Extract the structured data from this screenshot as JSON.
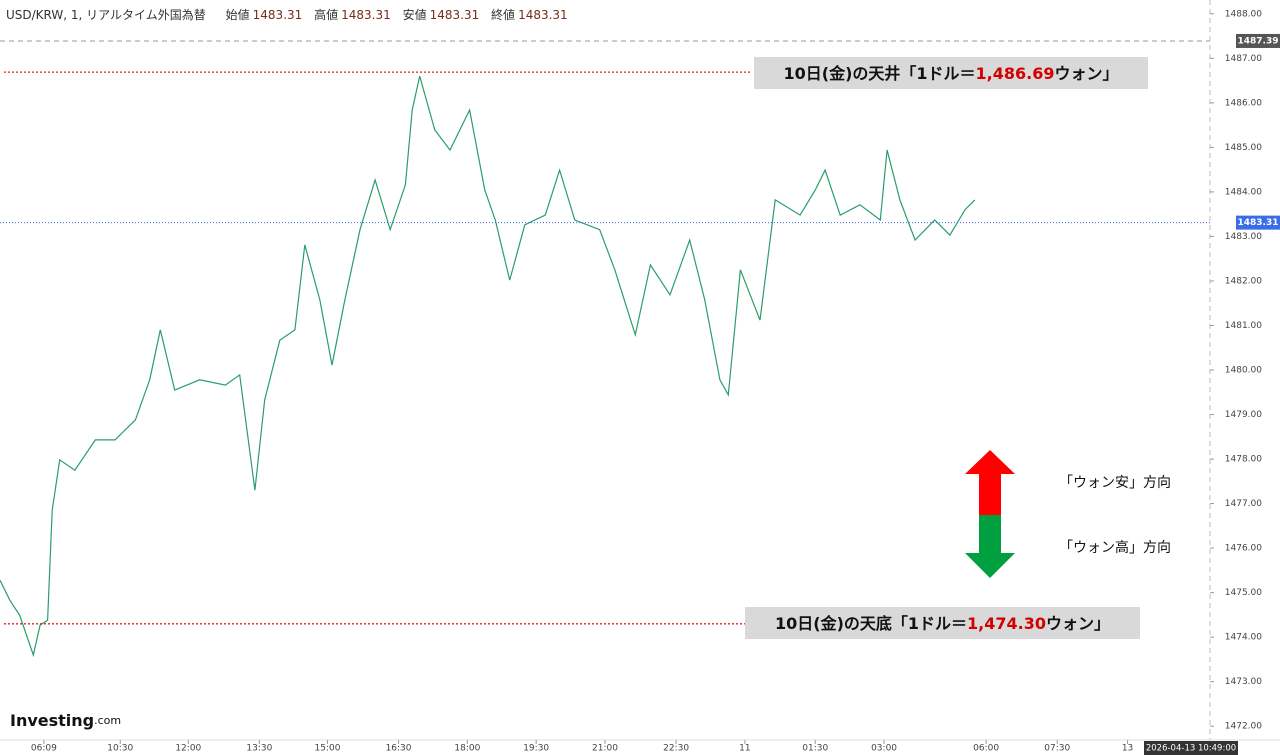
{
  "header": {
    "symbol": "USD/KRW, 1, リアルタイム外国為替",
    "open_label": "始値",
    "open": 1483.31,
    "high_label": "高値",
    "high": 1483.31,
    "low_label": "安値",
    "low": 1483.31,
    "close_label": "終値",
    "close": 1483.31
  },
  "arrows": {
    "up_label": "「ウォン安」方向",
    "down_label": "「ウォン高」方向"
  },
  "logo": {
    "name": "Investing",
    "suffix": ".com"
  },
  "chart_data": {
    "type": "line",
    "xlim": [
      0,
      1600
    ],
    "ylim": [
      1471.69,
      1488.31
    ],
    "xticks": [
      {
        "value": 58,
        "label": "06:09"
      },
      {
        "value": 159,
        "label": "10:30"
      },
      {
        "value": 249,
        "label": "12:00"
      },
      {
        "value": 343,
        "label": "13:30"
      },
      {
        "value": 433,
        "label": "15:00"
      },
      {
        "value": 527,
        "label": "16:30"
      },
      {
        "value": 618,
        "label": "18:00"
      },
      {
        "value": 709,
        "label": "19:30"
      },
      {
        "value": 800,
        "label": "21:00"
      },
      {
        "value": 894,
        "label": "22:30"
      },
      {
        "value": 985,
        "label": "11"
      },
      {
        "value": 1078,
        "label": "01:30"
      },
      {
        "value": 1169,
        "label": "03:00"
      },
      {
        "value": 1304,
        "label": "06:00"
      },
      {
        "value": 1398,
        "label": "07:30"
      },
      {
        "value": 1491,
        "label": "13"
      }
    ],
    "yticks": [
      {
        "value": 1472,
        "label": "1472.00"
      },
      {
        "value": 1473,
        "label": "1473.00"
      },
      {
        "value": 1474,
        "label": "1474.00"
      },
      {
        "value": 1475,
        "label": "1475.00"
      },
      {
        "value": 1476,
        "label": "1476.00"
      },
      {
        "value": 1477,
        "label": "1477.00"
      },
      {
        "value": 1478,
        "label": "1478.00"
      },
      {
        "value": 1479,
        "label": "1479.00"
      },
      {
        "value": 1480,
        "label": "1480.00"
      },
      {
        "value": 1481,
        "label": "1481.00"
      },
      {
        "value": 1482,
        "label": "1482.00"
      },
      {
        "value": 1483,
        "label": "1483.00"
      },
      {
        "value": 1484,
        "label": "1484.00"
      },
      {
        "value": 1485,
        "label": "1485.00"
      },
      {
        "value": 1486,
        "label": "1486.00"
      },
      {
        "value": 1487,
        "label": "1487.00"
      },
      {
        "value": 1488,
        "label": "1488.00"
      }
    ],
    "grid": false,
    "series": [
      {
        "color": "#2a9d6a",
        "x": [
          0,
          13,
          26,
          44,
          53,
          63,
          69,
          79,
          99,
          126,
          152,
          179,
          198,
          212,
          231,
          264,
          298,
          317,
          337,
          350,
          370,
          390,
          403,
          423,
          439,
          456,
          476,
          496,
          516,
          536,
          545,
          555,
          575,
          595,
          621,
          641,
          655,
          674,
          694,
          721,
          740,
          760,
          793,
          813,
          840,
          860,
          886,
          912,
          932,
          952,
          963,
          979,
          1005,
          1025,
          1058,
          1078,
          1091,
          1111,
          1137,
          1164,
          1173,
          1190,
          1210,
          1236,
          1256,
          1276,
          1289
        ],
        "values": [
          1475.28,
          1474.83,
          1474.49,
          1473.6,
          1474.27,
          1474.38,
          1476.85,
          1477.98,
          1477.75,
          1478.43,
          1478.43,
          1478.88,
          1479.78,
          1480.9,
          1479.55,
          1479.78,
          1479.66,
          1479.89,
          1477.3,
          1479.33,
          1480.67,
          1480.9,
          1482.81,
          1481.57,
          1480.11,
          1481.57,
          1483.15,
          1484.27,
          1483.15,
          1484.16,
          1485.84,
          1486.6,
          1485.39,
          1484.94,
          1485.84,
          1484.04,
          1483.37,
          1482.02,
          1483.26,
          1483.48,
          1484.49,
          1483.37,
          1483.15,
          1482.25,
          1480.79,
          1482.36,
          1481.69,
          1482.92,
          1481.57,
          1479.78,
          1479.44,
          1482.25,
          1481.12,
          1483.82,
          1483.48,
          1484.04,
          1484.49,
          1483.48,
          1483.71,
          1483.37,
          1484.94,
          1483.82,
          1482.92,
          1483.37,
          1483.03,
          1483.6,
          1483.82
        ]
      }
    ],
    "ref_price": 1487.39,
    "last_price": 1483.31,
    "cursor_time": "2026-04-13 10:49:00",
    "annotations": [
      {
        "prefix": "10日(金)の天井「1ドル＝",
        "value": 1486.69,
        "value_label": "1,486.69",
        "suffix": "ウォン」"
      },
      {
        "prefix": "10日(金)の天底「1ドル＝",
        "value": 1474.3,
        "value_label": "1,474.30",
        "suffix": "ウォン」"
      }
    ]
  }
}
